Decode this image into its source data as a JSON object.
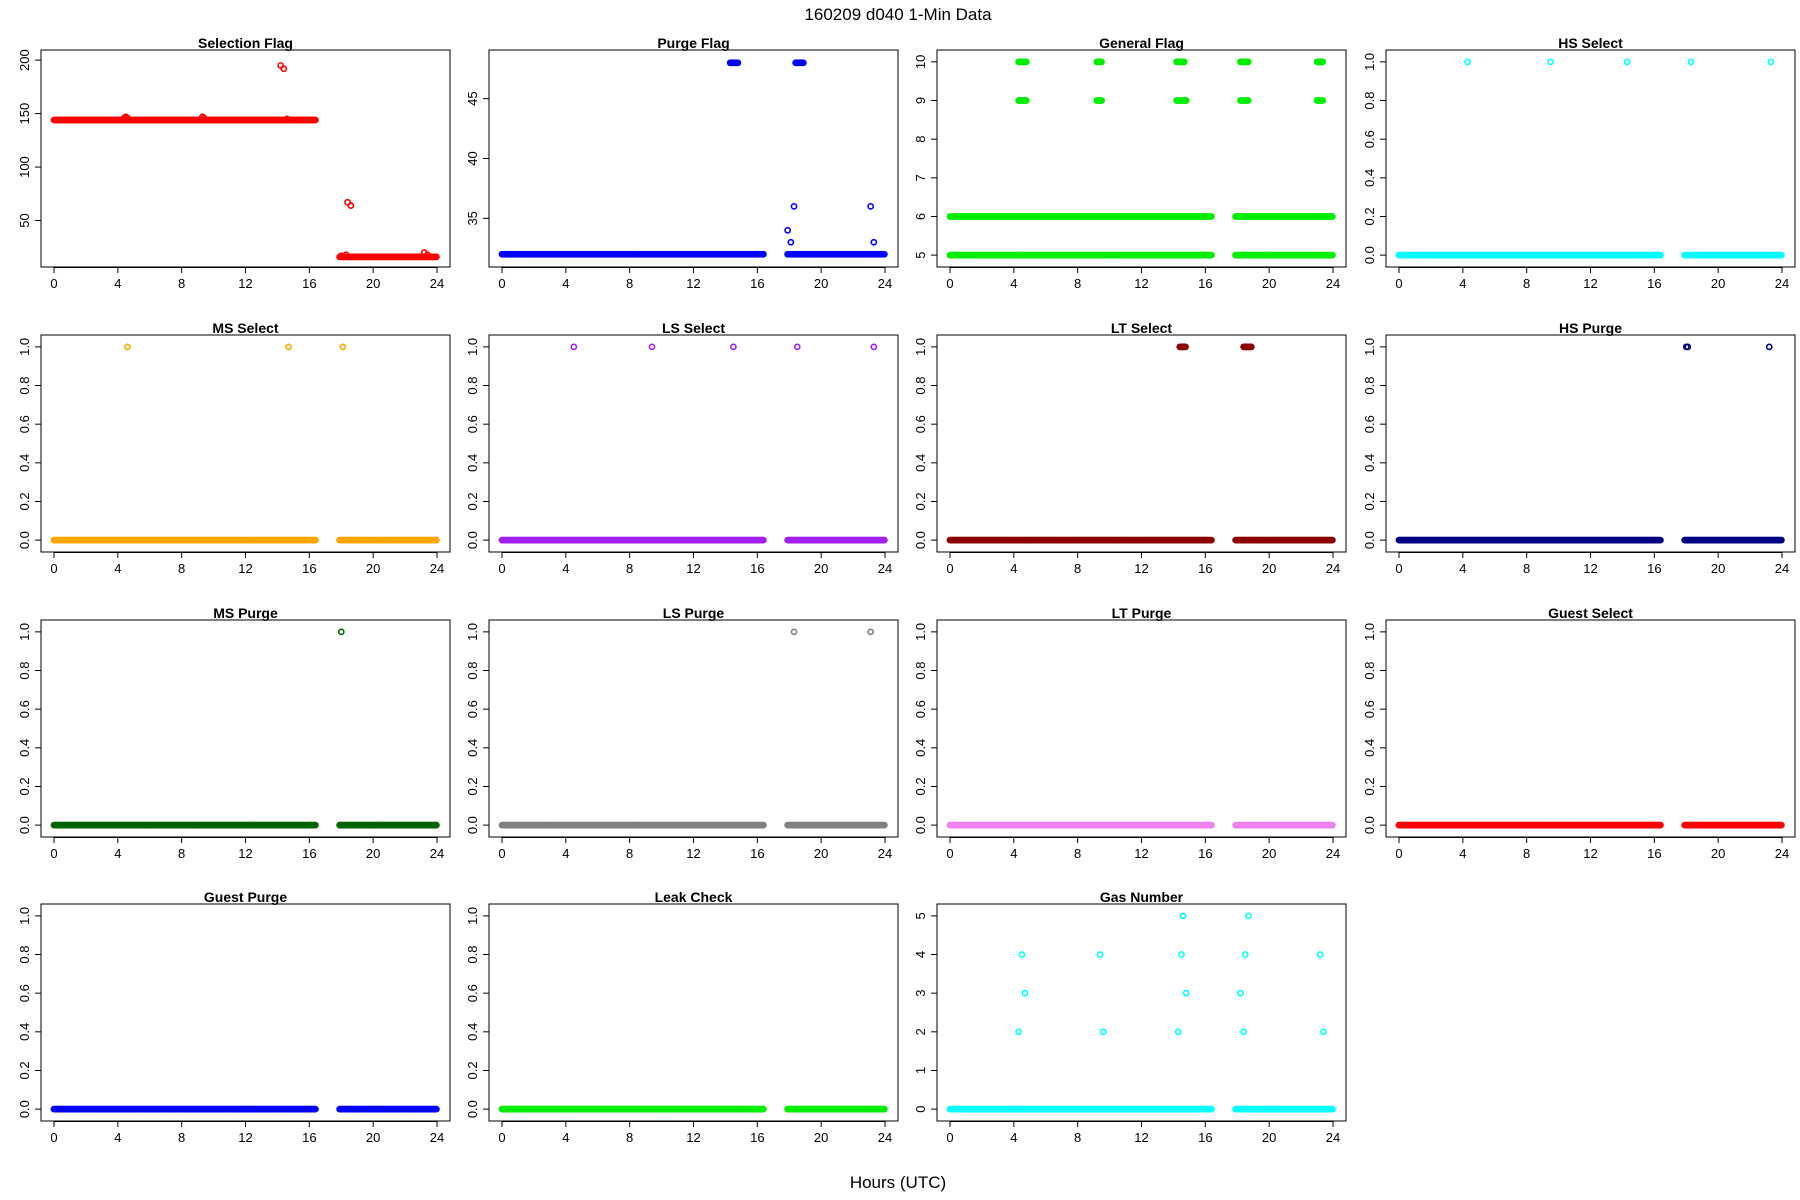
{
  "figure": {
    "title": "160209   d040   1-Min Data",
    "xlabel": "Hours (UTC)"
  },
  "chart_data": [
    {
      "type": "scatter",
      "title": "Selection Flag",
      "color": "#ff0000",
      "xlim": [
        0,
        24
      ],
      "ylim": [
        14,
        202
      ],
      "xticks": [
        0,
        4,
        8,
        12,
        16,
        20,
        24
      ],
      "yticks": [
        50,
        100,
        150,
        200
      ],
      "gaps": [
        [
          16.4,
          17.9
        ]
      ],
      "runs": [
        {
          "from": 0,
          "to": 16.4,
          "y": 144
        },
        {
          "from": 17.9,
          "to": 24,
          "y": 16
        }
      ],
      "points": [
        [
          4.4,
          146
        ],
        [
          4.5,
          147
        ],
        [
          4.6,
          146
        ],
        [
          9.3,
          147
        ],
        [
          9.4,
          146
        ],
        [
          14.2,
          195
        ],
        [
          14.4,
          192
        ],
        [
          14.6,
          145
        ],
        [
          14.8,
          144
        ],
        [
          18.0,
          17
        ],
        [
          18.3,
          18
        ],
        [
          18.4,
          67
        ],
        [
          18.6,
          64
        ],
        [
          23.2,
          20
        ],
        [
          23.4,
          18
        ]
      ]
    },
    {
      "type": "scatter",
      "title": "Purge Flag",
      "color": "#0000ff",
      "xlim": [
        0,
        24
      ],
      "ylim": [
        31.6,
        48.4
      ],
      "xticks": [
        0,
        4,
        8,
        12,
        16,
        20,
        24
      ],
      "yticks": [
        35,
        40,
        45
      ],
      "gaps": [
        [
          16.4,
          17.9
        ],
        [
          18.2,
          18.7
        ]
      ],
      "runs": [
        {
          "from": 0,
          "to": 16.4,
          "y": 32
        },
        {
          "from": 17.9,
          "to": 24,
          "y": 32
        },
        {
          "from": 14.3,
          "to": 14.8,
          "y": 48
        },
        {
          "from": 18.4,
          "to": 18.9,
          "y": 48
        }
      ],
      "points": [
        [
          17.9,
          34
        ],
        [
          18.1,
          33
        ],
        [
          18.3,
          36
        ],
        [
          23.1,
          36
        ],
        [
          23.3,
          33
        ]
      ]
    },
    {
      "type": "scatter",
      "title": "General Flag",
      "color": "#00ee00",
      "xlim": [
        0,
        24
      ],
      "ylim": [
        4.9,
        10.1
      ],
      "xticks": [
        0,
        4,
        8,
        12,
        16,
        20,
        24
      ],
      "yticks": [
        5,
        6,
        7,
        8,
        9,
        10
      ],
      "gaps": [
        [
          16.4,
          17.9
        ],
        [
          18.4,
          18.8
        ]
      ],
      "runs": [
        {
          "from": 0,
          "to": 16.4,
          "y": 5
        },
        {
          "from": 17.9,
          "to": 24,
          "y": 5
        },
        {
          "from": 0,
          "to": 16.4,
          "y": 6
        },
        {
          "from": 17.9,
          "to": 24,
          "y": 6
        },
        {
          "from": 4.3,
          "to": 4.8,
          "y": 10
        },
        {
          "from": 9.2,
          "to": 9.5,
          "y": 10
        },
        {
          "from": 14.2,
          "to": 14.7,
          "y": 10
        },
        {
          "from": 18.2,
          "to": 18.7,
          "y": 10
        },
        {
          "from": 23.0,
          "to": 23.4,
          "y": 10
        },
        {
          "from": 4.3,
          "to": 4.8,
          "y": 9
        },
        {
          "from": 9.2,
          "to": 9.5,
          "y": 9
        },
        {
          "from": 14.2,
          "to": 14.8,
          "y": 9
        },
        {
          "from": 18.2,
          "to": 18.7,
          "y": 9
        },
        {
          "from": 23.0,
          "to": 23.4,
          "y": 9
        }
      ],
      "points": []
    },
    {
      "type": "scatter",
      "title": "HS Select",
      "color": "#00ffff",
      "xlim": [
        0,
        24
      ],
      "ylim": [
        -0.02,
        1.02
      ],
      "xticks": [
        0,
        4,
        8,
        12,
        16,
        20,
        24
      ],
      "yticks": [
        0.0,
        0.2,
        0.4,
        0.6,
        0.8,
        1.0
      ],
      "gaps": [
        [
          16.4,
          17.9
        ]
      ],
      "runs": [
        {
          "from": 0,
          "to": 16.4,
          "y": 0
        },
        {
          "from": 17.9,
          "to": 24,
          "y": 0
        }
      ],
      "points": [
        [
          4.3,
          1
        ],
        [
          9.5,
          1
        ],
        [
          14.3,
          1
        ],
        [
          18.3,
          1
        ],
        [
          23.3,
          1
        ]
      ]
    },
    {
      "type": "scatter",
      "title": "MS Select",
      "color": "#ffa500",
      "xlim": [
        0,
        24
      ],
      "ylim": [
        -0.02,
        1.02
      ],
      "xticks": [
        0,
        4,
        8,
        12,
        16,
        20,
        24
      ],
      "yticks": [
        0.0,
        0.2,
        0.4,
        0.6,
        0.8,
        1.0
      ],
      "gaps": [
        [
          16.4,
          17.9
        ]
      ],
      "runs": [
        {
          "from": 0,
          "to": 16.4,
          "y": 0
        },
        {
          "from": 17.9,
          "to": 24,
          "y": 0
        }
      ],
      "points": [
        [
          4.6,
          1
        ],
        [
          14.7,
          1
        ],
        [
          18.1,
          1
        ]
      ]
    },
    {
      "type": "scatter",
      "title": "LS Select",
      "color": "#a020f0",
      "xlim": [
        0,
        24
      ],
      "ylim": [
        -0.02,
        1.02
      ],
      "xticks": [
        0,
        4,
        8,
        12,
        16,
        20,
        24
      ],
      "yticks": [
        0.0,
        0.2,
        0.4,
        0.6,
        0.8,
        1.0
      ],
      "gaps": [
        [
          16.4,
          17.9
        ]
      ],
      "runs": [
        {
          "from": 0,
          "to": 16.4,
          "y": 0
        },
        {
          "from": 17.9,
          "to": 24,
          "y": 0
        }
      ],
      "points": [
        [
          4.5,
          1
        ],
        [
          9.4,
          1
        ],
        [
          14.5,
          1
        ],
        [
          18.5,
          1
        ],
        [
          23.3,
          1
        ]
      ]
    },
    {
      "type": "scatter",
      "title": "LT Select",
      "color": "#8b0000",
      "xlim": [
        0,
        24
      ],
      "ylim": [
        -0.02,
        1.02
      ],
      "xticks": [
        0,
        4,
        8,
        12,
        16,
        20,
        24
      ],
      "yticks": [
        0.0,
        0.2,
        0.4,
        0.6,
        0.8,
        1.0
      ],
      "gaps": [
        [
          16.4,
          17.9
        ]
      ],
      "runs": [
        {
          "from": 0,
          "to": 16.4,
          "y": 0
        },
        {
          "from": 17.9,
          "to": 24,
          "y": 0
        },
        {
          "from": 14.4,
          "to": 14.8,
          "y": 1
        },
        {
          "from": 18.4,
          "to": 18.9,
          "y": 1
        }
      ],
      "points": []
    },
    {
      "type": "scatter",
      "title": "HS Purge",
      "color": "#000080",
      "xlim": [
        0,
        24
      ],
      "ylim": [
        -0.02,
        1.02
      ],
      "xticks": [
        0,
        4,
        8,
        12,
        16,
        20,
        24
      ],
      "yticks": [
        0.0,
        0.2,
        0.4,
        0.6,
        0.8,
        1.0
      ],
      "gaps": [
        [
          16.4,
          17.9
        ]
      ],
      "runs": [
        {
          "from": 0,
          "to": 16.4,
          "y": 0
        },
        {
          "from": 17.9,
          "to": 24,
          "y": 0
        }
      ],
      "points": [
        [
          18.0,
          1
        ],
        [
          18.1,
          1
        ],
        [
          23.2,
          1
        ]
      ]
    },
    {
      "type": "scatter",
      "title": "MS Purge",
      "color": "#006400",
      "xlim": [
        0,
        24
      ],
      "ylim": [
        -0.02,
        1.02
      ],
      "xticks": [
        0,
        4,
        8,
        12,
        16,
        20,
        24
      ],
      "yticks": [
        0.0,
        0.2,
        0.4,
        0.6,
        0.8,
        1.0
      ],
      "gaps": [
        [
          16.4,
          17.9
        ]
      ],
      "runs": [
        {
          "from": 0,
          "to": 16.4,
          "y": 0
        },
        {
          "from": 17.9,
          "to": 24,
          "y": 0
        }
      ],
      "points": [
        [
          18.0,
          1
        ]
      ]
    },
    {
      "type": "scatter",
      "title": "LS Purge",
      "color": "#808080",
      "xlim": [
        0,
        24
      ],
      "ylim": [
        -0.02,
        1.02
      ],
      "xticks": [
        0,
        4,
        8,
        12,
        16,
        20,
        24
      ],
      "yticks": [
        0.0,
        0.2,
        0.4,
        0.6,
        0.8,
        1.0
      ],
      "gaps": [
        [
          16.4,
          17.9
        ]
      ],
      "runs": [
        {
          "from": 0,
          "to": 16.4,
          "y": 0
        },
        {
          "from": 17.9,
          "to": 24,
          "y": 0
        }
      ],
      "points": [
        [
          18.3,
          1
        ],
        [
          23.1,
          1
        ]
      ]
    },
    {
      "type": "scatter",
      "title": "LT Purge",
      "color": "#ee82ee",
      "xlim": [
        0,
        24
      ],
      "ylim": [
        -0.02,
        1.02
      ],
      "xticks": [
        0,
        4,
        8,
        12,
        16,
        20,
        24
      ],
      "yticks": [
        0.0,
        0.2,
        0.4,
        0.6,
        0.8,
        1.0
      ],
      "gaps": [
        [
          16.4,
          17.9
        ]
      ],
      "runs": [
        {
          "from": 0,
          "to": 16.4,
          "y": 0
        },
        {
          "from": 17.9,
          "to": 24,
          "y": 0
        }
      ],
      "points": []
    },
    {
      "type": "scatter",
      "title": "Guest Select",
      "color": "#ff0000",
      "xlim": [
        0,
        24
      ],
      "ylim": [
        -0.02,
        1.02
      ],
      "xticks": [
        0,
        4,
        8,
        12,
        16,
        20,
        24
      ],
      "yticks": [
        0.0,
        0.2,
        0.4,
        0.6,
        0.8,
        1.0
      ],
      "gaps": [
        [
          16.4,
          17.9
        ]
      ],
      "runs": [
        {
          "from": 0,
          "to": 16.4,
          "y": 0
        },
        {
          "from": 17.9,
          "to": 24,
          "y": 0
        }
      ],
      "points": []
    },
    {
      "type": "scatter",
      "title": "Guest Purge",
      "color": "#0000ff",
      "xlim": [
        0,
        24
      ],
      "ylim": [
        -0.02,
        1.02
      ],
      "xticks": [
        0,
        4,
        8,
        12,
        16,
        20,
        24
      ],
      "yticks": [
        0.0,
        0.2,
        0.4,
        0.6,
        0.8,
        1.0
      ],
      "gaps": [
        [
          16.4,
          17.9
        ]
      ],
      "runs": [
        {
          "from": 0,
          "to": 16.4,
          "y": 0
        },
        {
          "from": 17.9,
          "to": 24,
          "y": 0
        }
      ],
      "points": []
    },
    {
      "type": "scatter",
      "title": "Leak Check",
      "color": "#00ee00",
      "xlim": [
        0,
        24
      ],
      "ylim": [
        -0.02,
        1.02
      ],
      "xticks": [
        0,
        4,
        8,
        12,
        16,
        20,
        24
      ],
      "yticks": [
        0.0,
        0.2,
        0.4,
        0.6,
        0.8,
        1.0
      ],
      "gaps": [
        [
          16.4,
          17.9
        ]
      ],
      "runs": [
        {
          "from": 0,
          "to": 16.4,
          "y": 0
        },
        {
          "from": 17.9,
          "to": 24,
          "y": 0
        }
      ],
      "points": []
    },
    {
      "type": "scatter",
      "title": "Gas Number",
      "color": "#00ffff",
      "xlim": [
        0,
        24
      ],
      "ylim": [
        -0.1,
        5.1
      ],
      "xticks": [
        0,
        4,
        8,
        12,
        16,
        20,
        24
      ],
      "yticks": [
        0,
        1,
        2,
        3,
        4,
        5
      ],
      "gaps": [
        [
          16.4,
          17.9
        ]
      ],
      "runs": [
        {
          "from": 0,
          "to": 16.4,
          "y": 0
        },
        {
          "from": 17.9,
          "to": 24,
          "y": 0
        }
      ],
      "points": [
        [
          4.3,
          2
        ],
        [
          4.5,
          4
        ],
        [
          4.7,
          3
        ],
        [
          9.4,
          4
        ],
        [
          9.6,
          2
        ],
        [
          14.3,
          2
        ],
        [
          14.5,
          4
        ],
        [
          14.6,
          5
        ],
        [
          14.8,
          3
        ],
        [
          18.0,
          0
        ],
        [
          18.2,
          3
        ],
        [
          18.4,
          2
        ],
        [
          18.5,
          4
        ],
        [
          18.7,
          5
        ],
        [
          23.2,
          4
        ],
        [
          23.4,
          2
        ]
      ]
    }
  ]
}
